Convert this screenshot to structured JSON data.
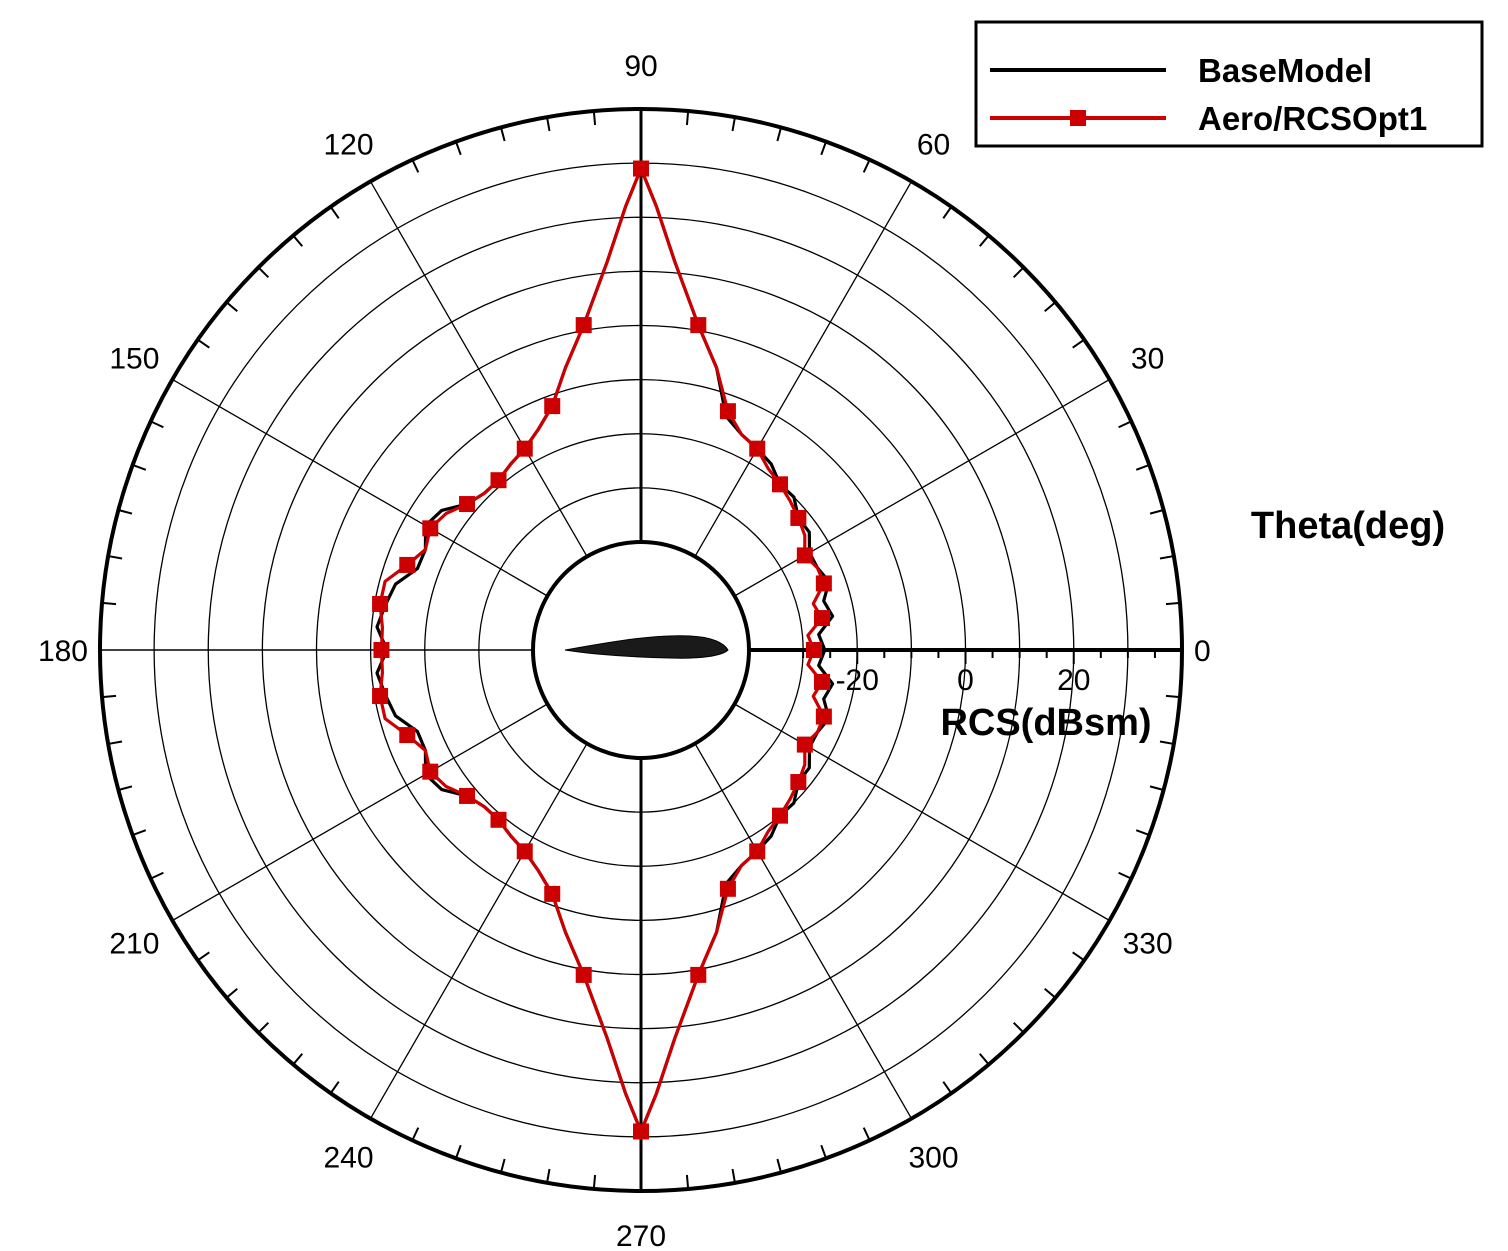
{
  "chart_data": {
    "type": "polar-line",
    "theta_label": "Theta(deg)",
    "r_label": "RCS(dBsm)",
    "theta_ticks": [
      0,
      30,
      60,
      90,
      120,
      150,
      180,
      210,
      240,
      270,
      300,
      330
    ],
    "r_ticks": [
      -20,
      0,
      20
    ],
    "r_range": [
      -40,
      40
    ],
    "grid": true,
    "legend_position": "top-right",
    "colors": {
      "BaseModel": "#000000",
      "Aero/RCSOpt1": "#cc0000"
    },
    "series": [
      {
        "name": "BaseModel",
        "line_color": "#000000",
        "marker": "none",
        "theta_deg": [
          0,
          5,
          10,
          15,
          20,
          25,
          30,
          35,
          40,
          45,
          50,
          55,
          60,
          65,
          70,
          75,
          80,
          85,
          88,
          90,
          92,
          95,
          100,
          105,
          110,
          115,
          120,
          125,
          130,
          135,
          140,
          145,
          150,
          155,
          160,
          165,
          170,
          175,
          180
        ],
        "rcs_dbsm": [
          -26,
          -27,
          -24,
          -25,
          -23,
          -24,
          -24,
          -22,
          -22,
          -20,
          -20,
          -18,
          -17,
          -16,
          -14,
          -6,
          1,
          12,
          22,
          29,
          22,
          12,
          1,
          -6,
          -12,
          -15,
          -17,
          -18,
          -19,
          -19,
          -18,
          -15,
          -14,
          -16,
          -16,
          -13,
          -12,
          -11,
          -13
        ]
      },
      {
        "name": "Aero/RCSOpt1",
        "line_color": "#cc0000",
        "marker": "square",
        "theta_deg": [
          0,
          5,
          10,
          15,
          20,
          25,
          30,
          35,
          40,
          45,
          50,
          55,
          60,
          65,
          70,
          75,
          80,
          85,
          88,
          90,
          92,
          95,
          100,
          105,
          110,
          115,
          120,
          125,
          130,
          135,
          140,
          145,
          150,
          155,
          160,
          165,
          170,
          175,
          180
        ],
        "rcs_dbsm": [
          -28,
          -29,
          -26,
          -27,
          -24,
          -24,
          -25,
          -23,
          -22,
          -21,
          -20,
          -19,
          -17,
          -16,
          -13,
          -6,
          1,
          12,
          22,
          29,
          22,
          12,
          1,
          -6,
          -12,
          -15,
          -17,
          -18,
          -19,
          -19,
          -18,
          -16,
          -15,
          -16,
          -14,
          -11,
          -11,
          -12,
          -12
        ]
      }
    ],
    "marker_theta_deg": [
      0,
      10,
      20,
      30,
      40,
      50,
      60,
      70,
      80,
      90,
      100,
      110,
      120,
      130,
      140,
      150,
      160,
      170,
      180
    ]
  }
}
